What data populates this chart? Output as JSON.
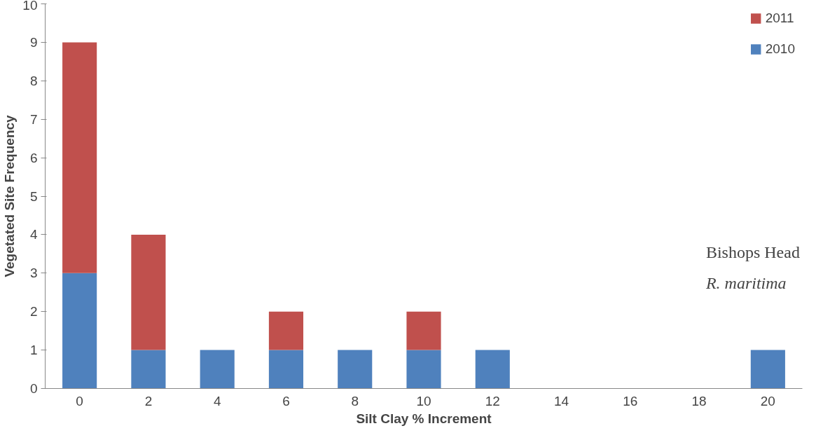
{
  "chart_data": {
    "type": "bar",
    "stacked": true,
    "xlabel": "Silt Clay % Increment",
    "ylabel": "Vegetated Site Frequency",
    "categories": [
      "0",
      "2",
      "4",
      "6",
      "8",
      "10",
      "12",
      "14",
      "16",
      "18",
      "20"
    ],
    "series": [
      {
        "name": "2010",
        "color": "#4f81bd",
        "values": [
          3,
          1,
          1,
          1,
          1,
          1,
          1,
          0,
          0,
          0,
          1
        ]
      },
      {
        "name": "2011",
        "color": "#c0504d",
        "values": [
          6,
          3,
          0,
          1,
          0,
          1,
          0,
          0,
          0,
          0,
          0
        ]
      }
    ],
    "ylim": [
      0,
      10
    ],
    "yticks": [
      0,
      1,
      2,
      3,
      4,
      5,
      6,
      7,
      8,
      9,
      10
    ],
    "grid": false,
    "legend": "top right",
    "annotations": [
      "Bishops Head",
      "R. maritima"
    ]
  }
}
